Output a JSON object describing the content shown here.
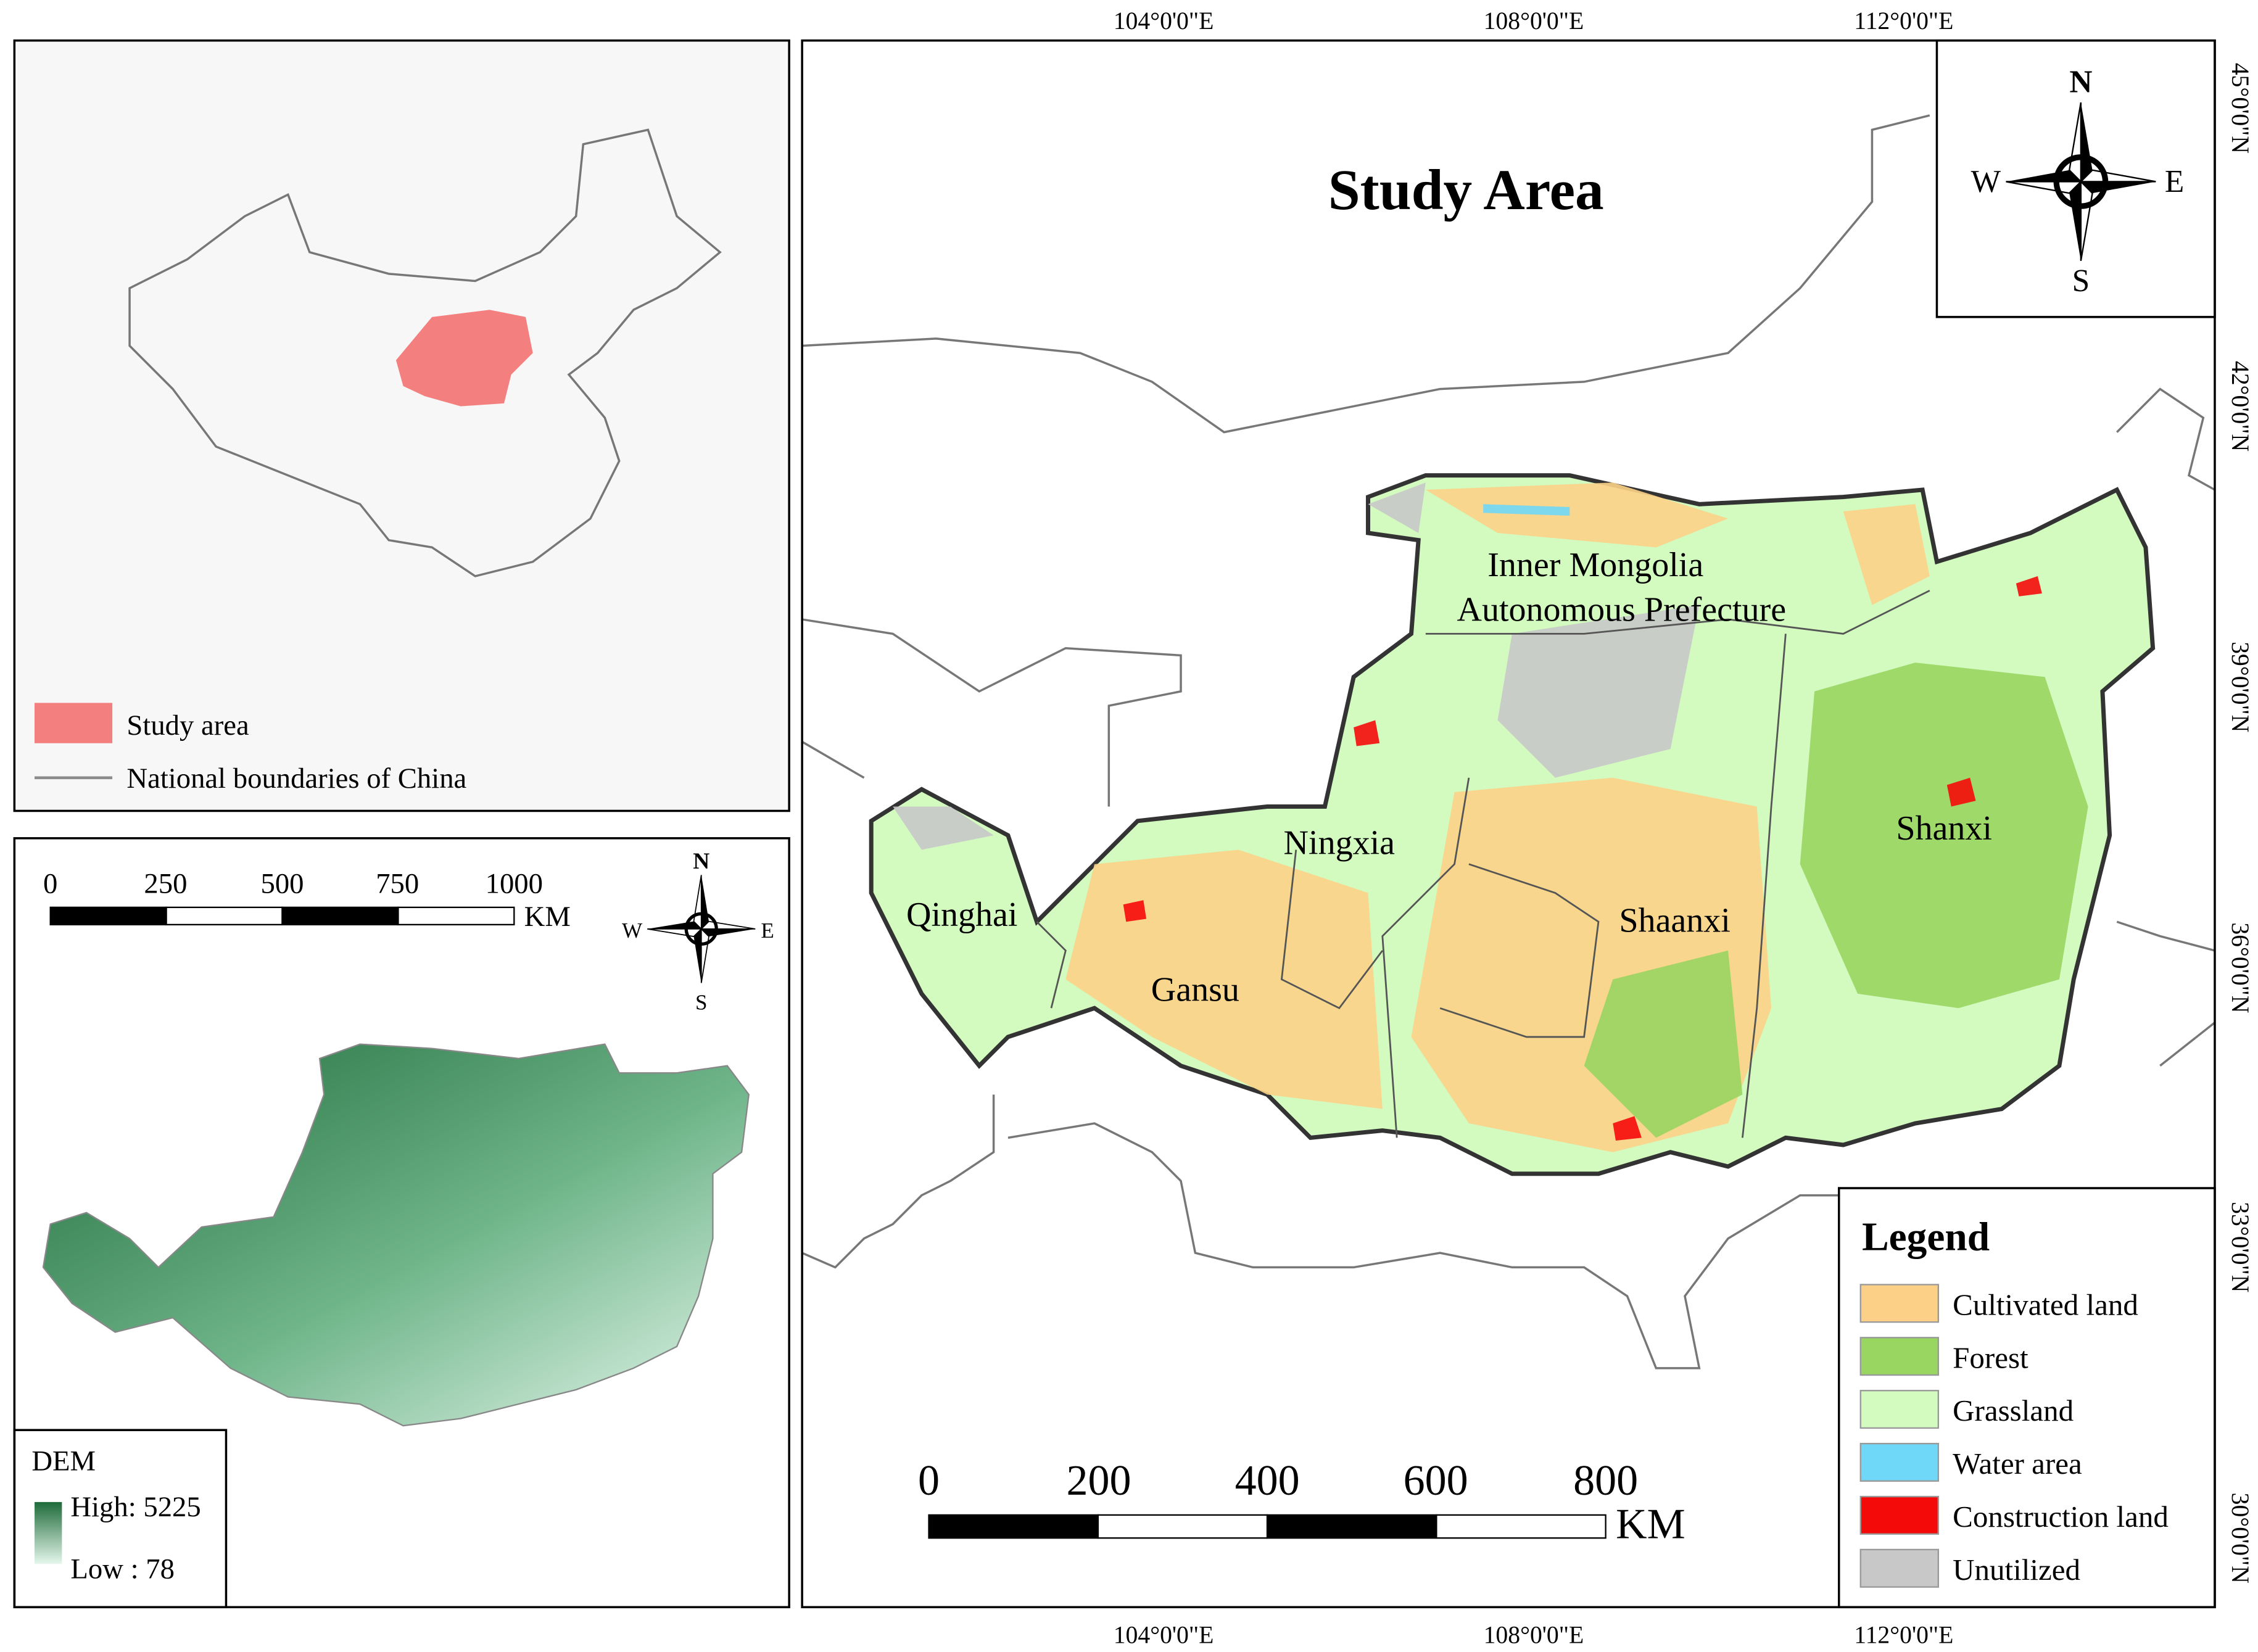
{
  "title": "Study Area",
  "inset_map": {
    "legend": [
      {
        "label": "Study area",
        "color": "#f47f7f"
      },
      {
        "label": "National boundaries of China",
        "color": "#8c8c8c"
      }
    ]
  },
  "dem_map": {
    "scale_bar": {
      "labels": [
        "0",
        "250",
        "500",
        "750",
        "1000"
      ],
      "unit": "KM"
    },
    "compass": {
      "n": "N",
      "e": "E",
      "s": "S",
      "w": "W"
    },
    "legend": {
      "title": "DEM",
      "high": "High: 5225",
      "low": "Low : 78",
      "high_color": "#1e6b3a",
      "low_color": "#e6f7ec"
    }
  },
  "main_map": {
    "longitudes": [
      "104°0'0\"E",
      "108°0'0\"E",
      "112°0'0\"E"
    ],
    "latitudes": [
      "45°0'0\"N",
      "42°0'0\"N",
      "39°0'0\"N",
      "36°0'0\"N",
      "33°0'0\"N",
      "30°0'0\"N"
    ],
    "regions": [
      "Inner Mongolia",
      "Autonomous Prefecture",
      "Ningxia",
      "Qinghai",
      "Gansu",
      "Shaanxi",
      "Shanxi"
    ],
    "compass": {
      "n": "N",
      "e": "E",
      "s": "S",
      "w": "W"
    },
    "scale_bar": {
      "labels": [
        "0",
        "200",
        "400",
        "600",
        "800"
      ],
      "unit": "KM"
    },
    "legend": {
      "title": "Legend",
      "items": [
        {
          "label": "Cultivated land",
          "color": "#fcd187"
        },
        {
          "label": "Forest",
          "color": "#98d561"
        },
        {
          "label": "Grassland",
          "color": "#d3fbc0"
        },
        {
          "label": "Water area",
          "color": "#6fd7f7"
        },
        {
          "label": "Construction land",
          "color": "#f50a0a"
        },
        {
          "label": "Unutilized",
          "color": "#c8c8c8"
        }
      ]
    }
  }
}
